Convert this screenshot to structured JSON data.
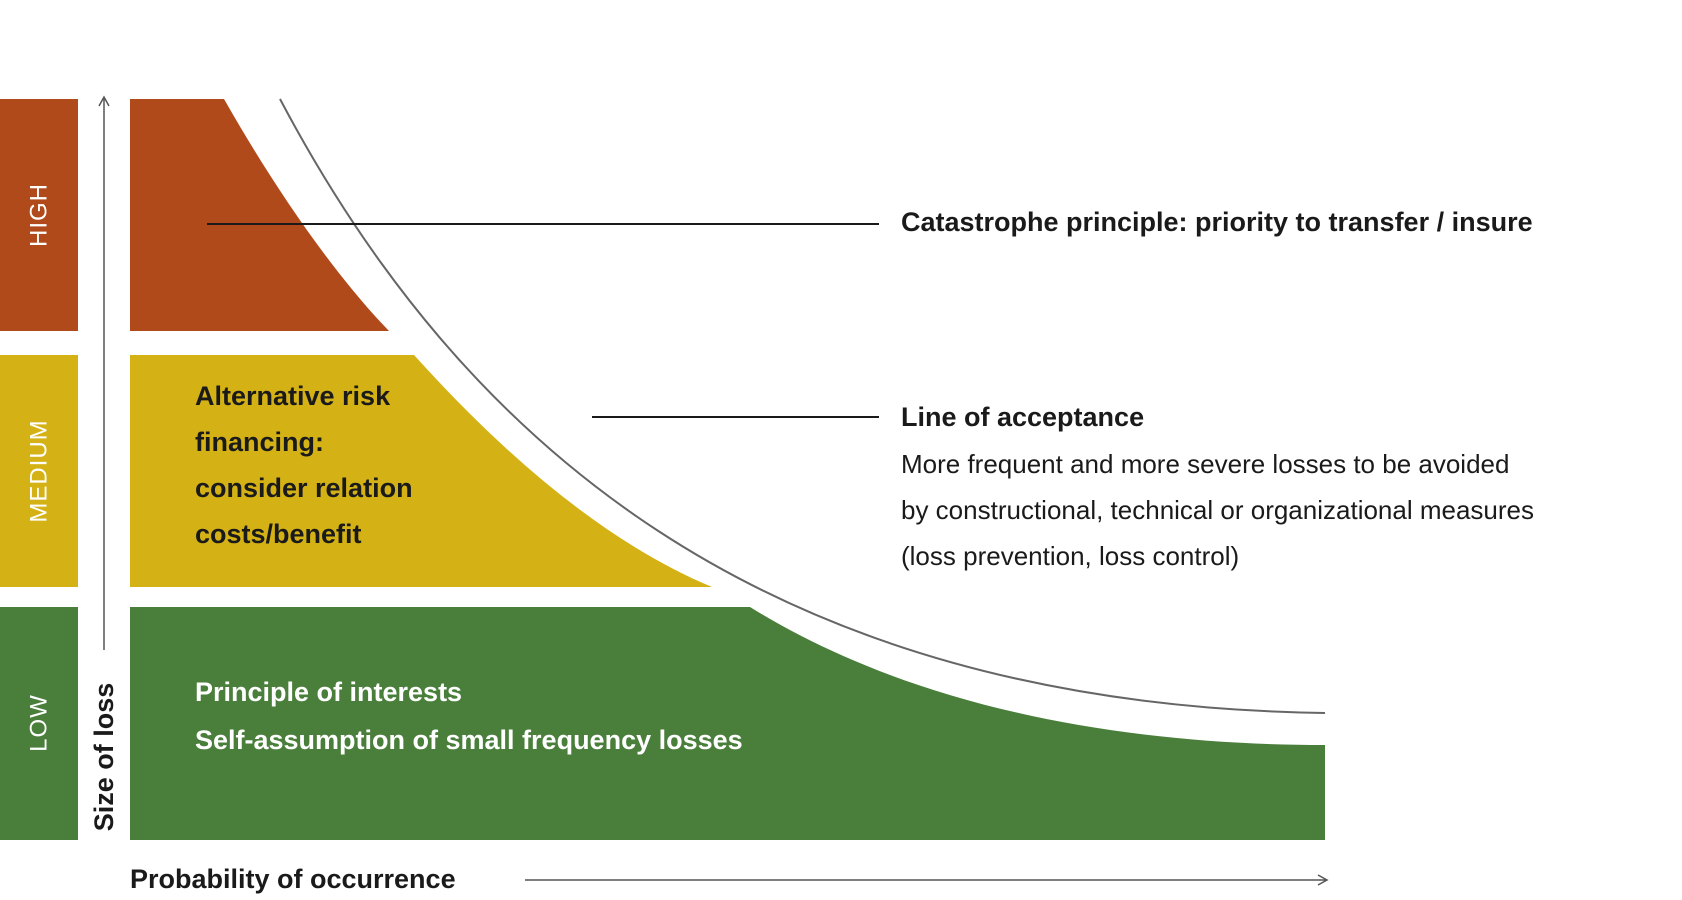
{
  "levels": {
    "high": "HIGH",
    "medium": "MEDIUM",
    "low": "LOW"
  },
  "axes": {
    "y_label": "Size of loss",
    "x_label": "Probability of occurrence"
  },
  "regions": {
    "medium": {
      "lines": [
        "Alternative risk",
        "financing:",
        "consider relation",
        "costs/benefit"
      ]
    },
    "low": {
      "lines": [
        "Principle of interests",
        "Self-assumption of small frequency losses"
      ]
    }
  },
  "annotations": {
    "catastrophe": "Catastrophe principle: priority to transfer / insure",
    "acceptance": {
      "title": "Line of acceptance",
      "lines": [
        "More frequent and more severe losses to be avoided",
        "by constructional, technical or organizational measures",
        "(loss prevention, loss control)"
      ]
    }
  }
}
